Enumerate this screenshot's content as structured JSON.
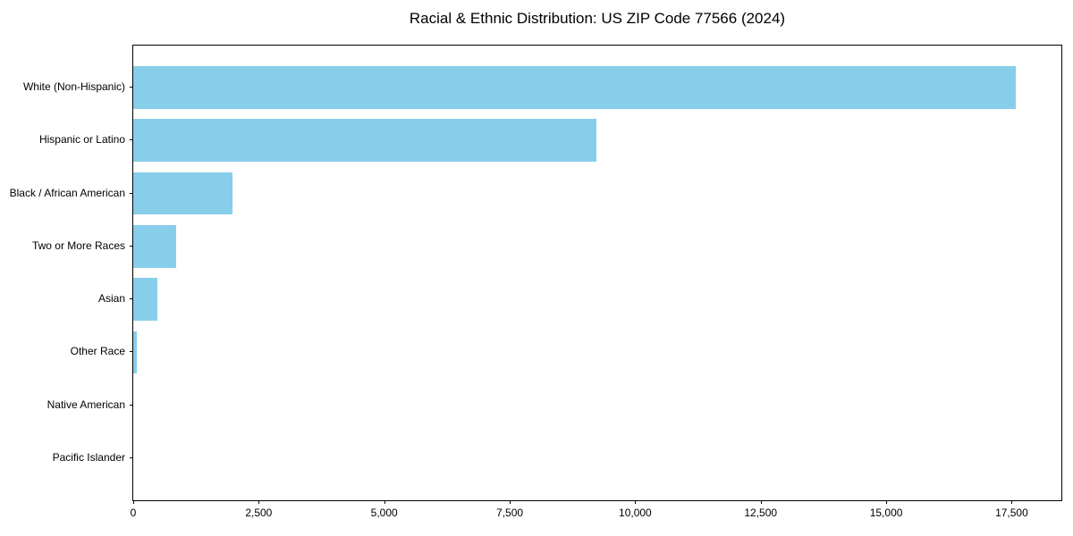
{
  "chart_data": {
    "type": "bar",
    "orientation": "horizontal",
    "title": "Racial & Ethnic Distribution: US ZIP Code 77566 (2024)",
    "xlabel": "",
    "ylabel": "",
    "categories": [
      "White (Non-Hispanic)",
      "Hispanic or Latino",
      "Black / African American",
      "Two or More Races",
      "Asian",
      "Other Race",
      "Native American",
      "Pacific Islander"
    ],
    "values": [
      17580,
      9230,
      1980,
      855,
      480,
      70,
      0,
      0
    ],
    "xlim": [
      0,
      18490
    ],
    "xticks": [
      0,
      2500,
      5000,
      7500,
      10000,
      12500,
      15000,
      17500
    ],
    "xtick_labels": [
      "0",
      "2,500",
      "5,000",
      "7,500",
      "10,000",
      "12,500",
      "15,000",
      "17,500"
    ],
    "grid": false,
    "legend": "none",
    "bar_color": "#87CEEB",
    "spine_color": "#000000",
    "text_color": "#000000",
    "background_color": "#ffffff"
  }
}
